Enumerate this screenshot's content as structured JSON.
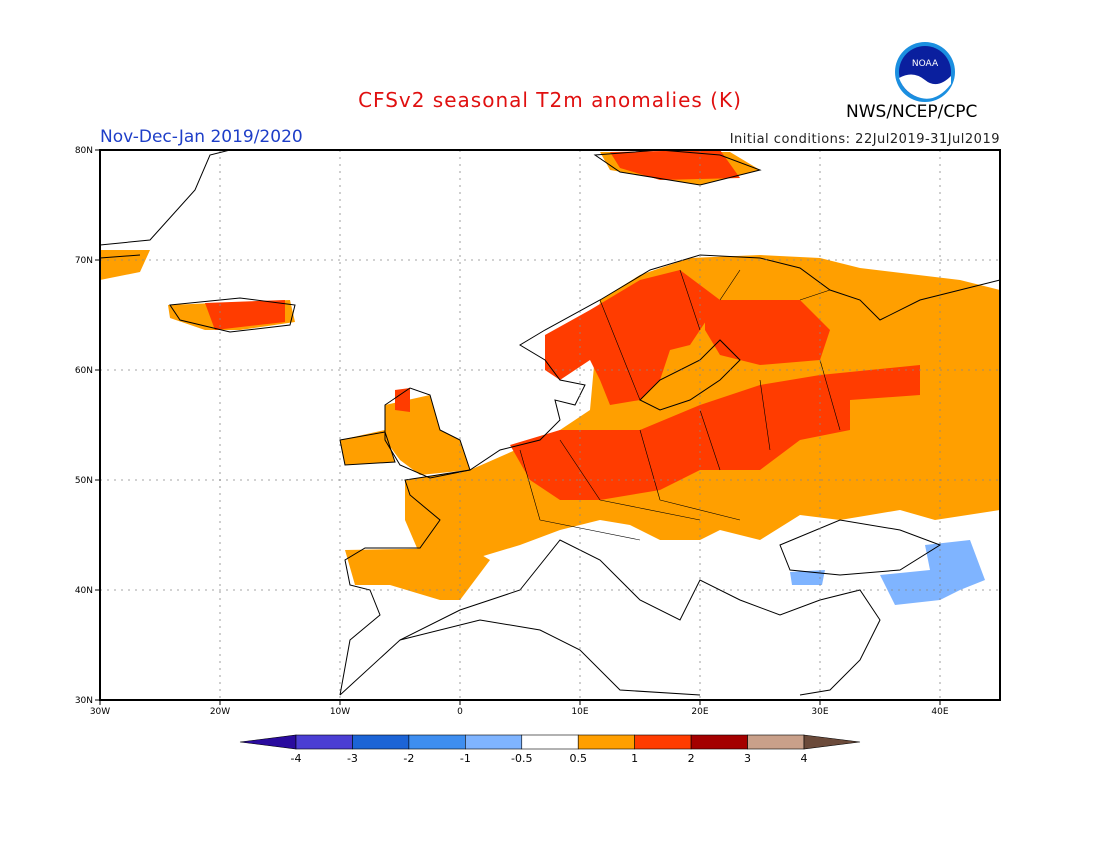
{
  "header": {
    "title": "CFSv2 seasonal T2m anomalies (K)",
    "agency": "NWS/NCEP/CPC",
    "logo_text": "NOAA",
    "period": "Nov-Dec-Jan 2019/2020",
    "initial_conditions": "Initial conditions: 22Jul2019-31Jul2019"
  },
  "colors": {
    "title": "#e01010",
    "period": "#1e3ec8",
    "anom_05_1": "#ff9f00",
    "anom_1_2": "#ff3c00",
    "anom_neg": "#7fb4ff"
  },
  "map": {
    "lat_labels": [
      "80N",
      "70N",
      "60N",
      "50N",
      "40N",
      "30N"
    ],
    "lon_labels": [
      "30W",
      "20W",
      "10W",
      "0",
      "10E",
      "20E",
      "30E",
      "40E"
    ],
    "lon_range": [
      -30,
      45
    ],
    "lat_range": [
      30,
      80
    ]
  },
  "colorbar": {
    "labels": [
      "-4",
      "-3",
      "-2",
      "-1",
      "-0.5",
      "0.5",
      "1",
      "2",
      "3",
      "4"
    ],
    "colors": [
      "#2a0b9e",
      "#4b3ed3",
      "#1c64d6",
      "#3e8ef0",
      "#7fb4ff",
      "#ffffff",
      "#ff9f00",
      "#ff3c00",
      "#a40000",
      "#c9a08a",
      "#6b4a3a"
    ]
  }
}
